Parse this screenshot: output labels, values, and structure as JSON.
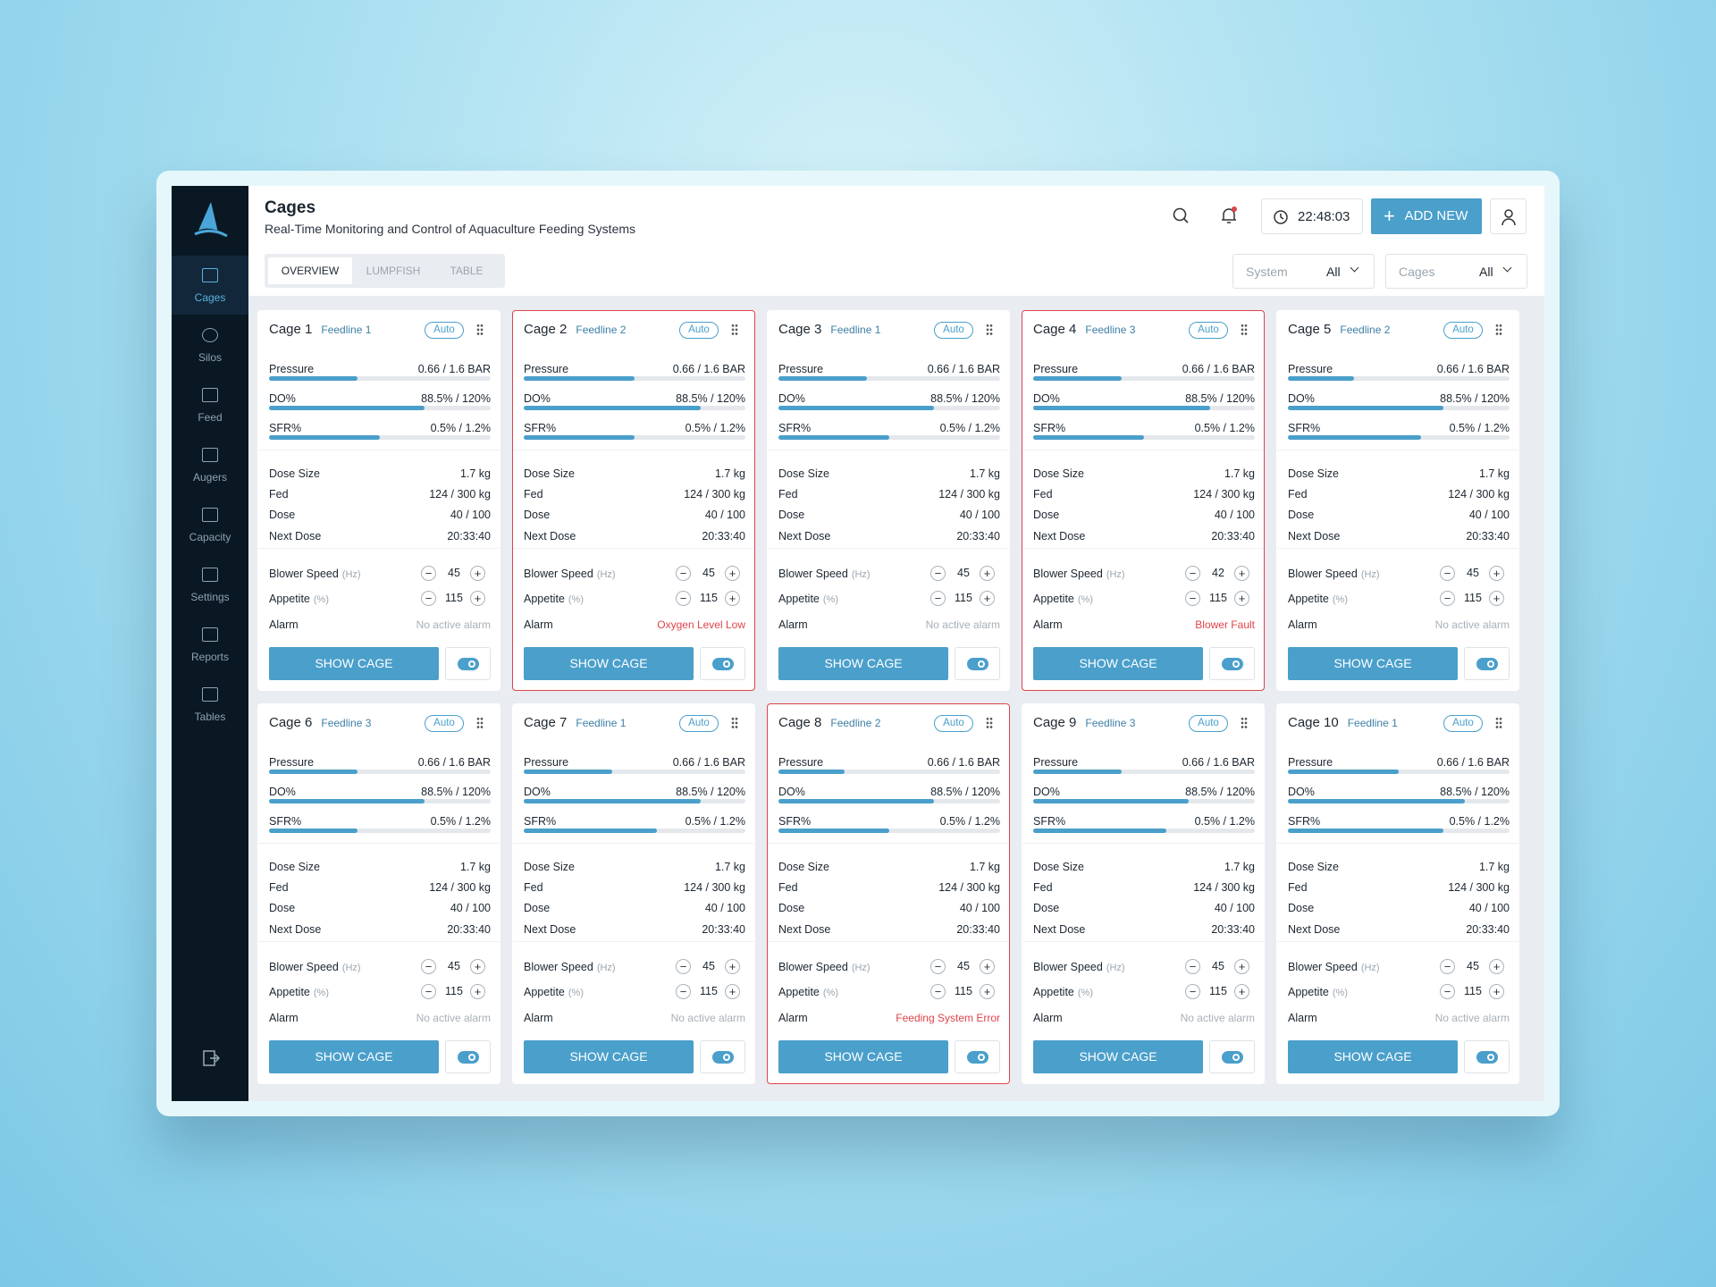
{
  "sidebar": {
    "items": [
      "Cages",
      "Silos",
      "Feed",
      "Augers",
      "Capacity",
      "Settings",
      "Reports",
      "Tables"
    ]
  },
  "header": {
    "title": "Cages",
    "subtitle": "Real-Time Monitoring and Control of Aquaculture Feeding Systems",
    "time": "22:48:03",
    "add_button": "ADD NEW"
  },
  "tabs": [
    "OVERVIEW",
    "LUMPFISH",
    "TABLE"
  ],
  "filters": [
    {
      "label": "System",
      "value": "All"
    },
    {
      "label": "Cages",
      "value": "All"
    }
  ],
  "labels": {
    "pressure": "Pressure",
    "do": "DO%",
    "sfr": "SFR%",
    "dose_size": "Dose Size",
    "fed": "Fed",
    "dose": "Dose",
    "next_dose": "Next Dose",
    "blower_speed": "Blower Speed",
    "blower_unit": "(Hz)",
    "appetite": "Appetite",
    "appetite_unit": "(%)",
    "alarm": "Alarm",
    "show_button": "SHOW CAGE"
  },
  "cages": [
    {
      "name": "Cage 1",
      "feedline": "Feedline 1",
      "mode": "Auto",
      "pressure": "0.66 / 1.6 BAR",
      "pressure_bar": 0.4,
      "do": "88.5% / 120%",
      "do_bar": 0.7,
      "sfr": "0.5% / 1.2%",
      "sfr_bar": 0.5,
      "dose_size": "1.7 kg",
      "fed": "124 / 300 kg",
      "dose": "40 / 100",
      "next_dose": "20:33:40",
      "blower_speed": 45,
      "appetite": 115,
      "alarm": "No active alarm",
      "alarm_active": false
    },
    {
      "name": "Cage 2",
      "feedline": "Feedline 2",
      "mode": "Auto",
      "pressure": "0.66 / 1.6 BAR",
      "pressure_bar": 0.5,
      "do": "88.5% / 120%",
      "do_bar": 0.8,
      "sfr": "0.5% / 1.2%",
      "sfr_bar": 0.5,
      "dose_size": "1.7 kg",
      "fed": "124 / 300 kg",
      "dose": "40 / 100",
      "next_dose": "20:33:40",
      "blower_speed": 45,
      "appetite": 115,
      "alarm": "Oxygen Level Low",
      "alarm_active": true
    },
    {
      "name": "Cage 3",
      "feedline": "Feedline 1",
      "mode": "Auto",
      "pressure": "0.66 / 1.6 BAR",
      "pressure_bar": 0.4,
      "do": "88.5% / 120%",
      "do_bar": 0.7,
      "sfr": "0.5% / 1.2%",
      "sfr_bar": 0.5,
      "dose_size": "1.7 kg",
      "fed": "124 / 300 kg",
      "dose": "40 / 100",
      "next_dose": "20:33:40",
      "blower_speed": 45,
      "appetite": 115,
      "alarm": "No active alarm",
      "alarm_active": false
    },
    {
      "name": "Cage 4",
      "feedline": "Feedline 3",
      "mode": "Auto",
      "pressure": "0.66 / 1.6 BAR",
      "pressure_bar": 0.4,
      "do": "88.5% / 120%",
      "do_bar": 0.8,
      "sfr": "0.5% / 1.2%",
      "sfr_bar": 0.5,
      "dose_size": "1.7 kg",
      "fed": "124 / 300 kg",
      "dose": "40 / 100",
      "next_dose": "20:33:40",
      "blower_speed": 42,
      "appetite": 115,
      "alarm": "Blower Fault",
      "alarm_active": true
    },
    {
      "name": "Cage 5",
      "feedline": "Feedline 2",
      "mode": "Auto",
      "pressure": "0.66 / 1.6 BAR",
      "pressure_bar": 0.3,
      "do": "88.5% / 120%",
      "do_bar": 0.7,
      "sfr": "0.5% / 1.2%",
      "sfr_bar": 0.6,
      "dose_size": "1.7 kg",
      "fed": "124 / 300 kg",
      "dose": "40 / 100",
      "next_dose": "20:33:40",
      "blower_speed": 45,
      "appetite": 115,
      "alarm": "No active alarm",
      "alarm_active": false
    },
    {
      "name": "Cage 6",
      "feedline": "Feedline 3",
      "mode": "Auto",
      "pressure": "0.66 / 1.6 BAR",
      "pressure_bar": 0.4,
      "do": "88.5% / 120%",
      "do_bar": 0.7,
      "sfr": "0.5% / 1.2%",
      "sfr_bar": 0.4,
      "dose_size": "1.7 kg",
      "fed": "124 / 300 kg",
      "dose": "40 / 100",
      "next_dose": "20:33:40",
      "blower_speed": 45,
      "appetite": 115,
      "alarm": "No active alarm",
      "alarm_active": false
    },
    {
      "name": "Cage 7",
      "feedline": "Feedline 1",
      "mode": "Auto",
      "pressure": "0.66 / 1.6 BAR",
      "pressure_bar": 0.4,
      "do": "88.5% / 120%",
      "do_bar": 0.8,
      "sfr": "0.5% / 1.2%",
      "sfr_bar": 0.6,
      "dose_size": "1.7 kg",
      "fed": "124 / 300 kg",
      "dose": "40 / 100",
      "next_dose": "20:33:40",
      "blower_speed": 45,
      "appetite": 115,
      "alarm": "No active alarm",
      "alarm_active": false
    },
    {
      "name": "Cage 8",
      "feedline": "Feedline 2",
      "mode": "Auto",
      "pressure": "0.66 / 1.6 BAR",
      "pressure_bar": 0.3,
      "do": "88.5% / 120%",
      "do_bar": 0.7,
      "sfr": "0.5% / 1.2%",
      "sfr_bar": 0.5,
      "dose_size": "1.7 kg",
      "fed": "124 / 300 kg",
      "dose": "40 / 100",
      "next_dose": "20:33:40",
      "blower_speed": 45,
      "appetite": 115,
      "alarm": "Feeding System Error",
      "alarm_active": true
    },
    {
      "name": "Cage 9",
      "feedline": "Feedline 3",
      "mode": "Auto",
      "pressure": "0.66 / 1.6 BAR",
      "pressure_bar": 0.4,
      "do": "88.5% / 120%",
      "do_bar": 0.7,
      "sfr": "0.5% / 1.2%",
      "sfr_bar": 0.6,
      "dose_size": "1.7 kg",
      "fed": "124 / 300 kg",
      "dose": "40 / 100",
      "next_dose": "20:33:40",
      "blower_speed": 45,
      "appetite": 115,
      "alarm": "No active alarm",
      "alarm_active": false
    },
    {
      "name": "Cage 10",
      "feedline": "Feedline 1",
      "mode": "Auto",
      "pressure": "0.66 / 1.6 BAR",
      "pressure_bar": 0.5,
      "do": "88.5% / 120%",
      "do_bar": 0.8,
      "sfr": "0.5% / 1.2%",
      "sfr_bar": 0.7,
      "dose_size": "1.7 kg",
      "fed": "124 / 300 kg",
      "dose": "40 / 100",
      "next_dose": "20:33:40",
      "blower_speed": 45,
      "appetite": 115,
      "alarm": "No active alarm",
      "alarm_active": false
    }
  ]
}
